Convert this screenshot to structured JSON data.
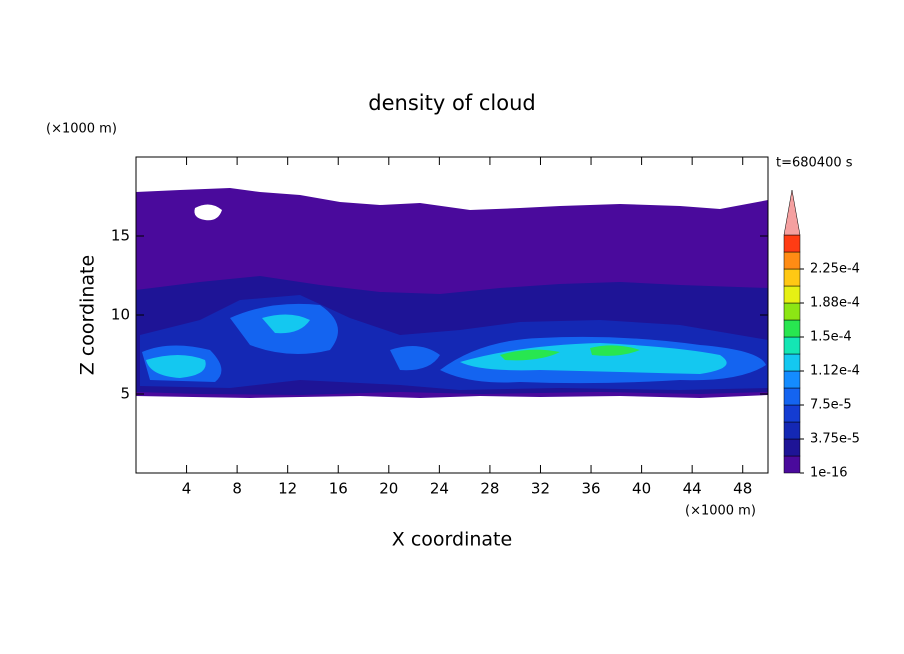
{
  "chart_data": {
    "type": "contour",
    "title": "density of cloud",
    "x_label": "X coordinate",
    "y_label": "Z coordinate",
    "x_unit": "(×1000 m)",
    "y_unit": "(×1000 m)",
    "time_label": "t=680400 s",
    "xlim": [
      0,
      50
    ],
    "xticks": [
      4,
      8,
      12,
      16,
      20,
      24,
      28,
      32,
      36,
      40,
      44,
      48
    ],
    "ylim": [
      0,
      20
    ],
    "yticks": [
      5,
      10,
      15
    ],
    "levels": [
      1e-16,
      1.875e-05,
      3.75e-05,
      5.625e-05,
      7.5e-05,
      9.375e-05,
      0.0001125,
      0.00013125,
      0.00015,
      0.00016875,
      0.0001875,
      0.00020625,
      0.000225,
      0.00024375
    ],
    "colors": [
      "#4a0a9c",
      "#1e1496",
      "#1428b4",
      "#143cd2",
      "#1464f0",
      "#148cff",
      "#14c8f0",
      "#14e6b4",
      "#28e650",
      "#8ce614",
      "#e6f014",
      "#ffc814",
      "#ff8c14",
      "#ff3c14"
    ],
    "extend_color": "#f5a0a0",
    "colorbar_ticks": [
      {
        "value": 1e-16,
        "label": "1e-16"
      },
      {
        "value": 3.75e-05,
        "label": "3.75e-5"
      },
      {
        "value": 7.5e-05,
        "label": "7.5e-5"
      },
      {
        "value": 0.0001125,
        "label": "1.12e-4"
      },
      {
        "value": 0.00015,
        "label": "1.5e-4"
      },
      {
        "value": 0.0001875,
        "label": "1.88e-4"
      },
      {
        "value": 0.000225,
        "label": "2.25e-4"
      }
    ]
  }
}
